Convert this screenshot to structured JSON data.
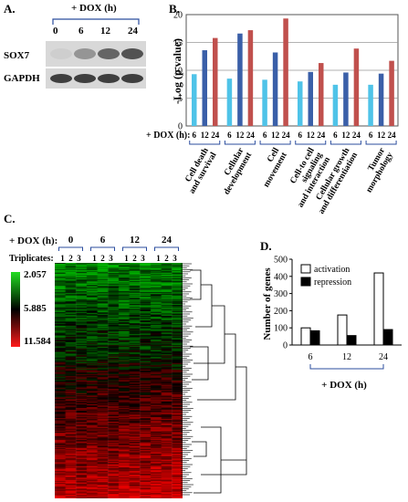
{
  "panelA": {
    "label": "A.",
    "dox_header": "+ DOX (h)",
    "timepoints": [
      "0",
      "6",
      "12",
      "24"
    ],
    "rows": [
      {
        "name": "SOX7",
        "intensities": [
          0.05,
          0.35,
          0.6,
          0.7
        ]
      },
      {
        "name": "GAPDH",
        "intensities": [
          0.8,
          0.8,
          0.8,
          0.8
        ]
      }
    ]
  },
  "panelB": {
    "label": "B.",
    "chart_data": {
      "type": "bar",
      "ylabel": "-Log (p value)",
      "ylim": [
        0,
        20
      ],
      "yticks": [
        0,
        5,
        10,
        15,
        20
      ],
      "xlabel_prefix": "+ DOX (h):",
      "timepoints": [
        "6",
        "12",
        "24"
      ],
      "colors": [
        "#4fc3e8",
        "#3a5fa8",
        "#c0504d"
      ],
      "categories": [
        {
          "name": "Cell death and survival",
          "lines": [
            "Cell death",
            "and survival"
          ],
          "values": [
            9.3,
            13.6,
            15.8
          ]
        },
        {
          "name": "Cellular development",
          "lines": [
            "Cellular",
            "development"
          ],
          "values": [
            8.5,
            16.6,
            17.2
          ]
        },
        {
          "name": "Cell movement",
          "lines": [
            "Cell",
            "movement"
          ],
          "values": [
            8.3,
            13.2,
            19.3
          ]
        },
        {
          "name": "Cell-to cell signaling and interaction",
          "lines": [
            "Cell-to cell",
            "signaling",
            "and interaction"
          ],
          "values": [
            8.0,
            9.7,
            11.3
          ]
        },
        {
          "name": "Cellular growth and differentiation",
          "lines": [
            "Cellular growth",
            "and differentiation"
          ],
          "values": [
            7.4,
            9.6,
            13.9
          ]
        },
        {
          "name": "Tumor morphology",
          "lines": [
            "Tumor",
            "morphology"
          ],
          "values": [
            7.4,
            9.4,
            11.7
          ]
        }
      ]
    }
  },
  "panelC": {
    "label": "C.",
    "dox_header": "+ DOX (h):",
    "timepoints": [
      "0",
      "6",
      "12",
      "24"
    ],
    "triplicates_label": "Triplicates:",
    "replicates": [
      "1",
      "2",
      "3"
    ],
    "scale": {
      "top": "2.057",
      "mid": "5.885",
      "bottom": "11.584"
    }
  },
  "panelD": {
    "label": "D.",
    "chart_data": {
      "type": "bar",
      "ylabel": "Number of genes",
      "xlabel": "+ DOX (h)",
      "ylim": [
        0,
        500
      ],
      "yticks": [
        0,
        100,
        200,
        300,
        400,
        500
      ],
      "categories": [
        "6",
        "12",
        "24"
      ],
      "series": [
        {
          "name": "activation",
          "values": [
            100,
            175,
            420
          ],
          "color": "#ffffff"
        },
        {
          "name": "repression",
          "values": [
            83,
            55,
            90
          ],
          "color": "#000000"
        }
      ]
    }
  }
}
